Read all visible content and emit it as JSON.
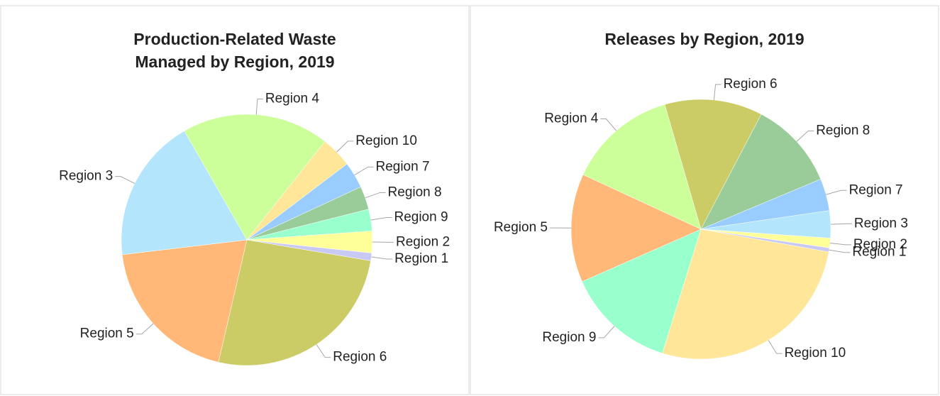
{
  "chart_data": [
    {
      "type": "pie",
      "title": "Production-Related Waste Managed by Region, 2019",
      "start_angle": 96,
      "categories": [
        "Region 1",
        "Region 6",
        "Region 5",
        "Region 3",
        "Region 4",
        "Region 10",
        "Region 7",
        "Region 8",
        "Region 9",
        "Region 2"
      ],
      "values": [
        1,
        26,
        19.5,
        18.6,
        19,
        4,
        3.4,
        3,
        2.8,
        2.8
      ],
      "colors": [
        "#c9c9f5",
        "#cccc66",
        "#ffb877",
        "#b3e6fc",
        "#ccff99",
        "#ffe699",
        "#99ccff",
        "#99cc99",
        "#99ffcc",
        "#ffff99"
      ]
    },
    {
      "type": "pie",
      "title": "Releases by Region, 2019",
      "start_angle": 343.8,
      "categories": [
        "Region 6",
        "Region 8",
        "Region 7",
        "Region 3",
        "Region 2",
        "Region 1",
        "Region 10",
        "Region 9",
        "Region 5",
        "Region 4"
      ],
      "values": [
        12.2,
        11,
        4,
        3.4,
        1.2,
        0.5,
        27,
        13.6,
        13.5,
        13.6
      ],
      "colors": [
        "#cccc66",
        "#99cc99",
        "#99ccff",
        "#b3e6fc",
        "#ffff99",
        "#c9c9f5",
        "#ffe699",
        "#99ffcc",
        "#ffb877",
        "#ccff99"
      ]
    }
  ]
}
